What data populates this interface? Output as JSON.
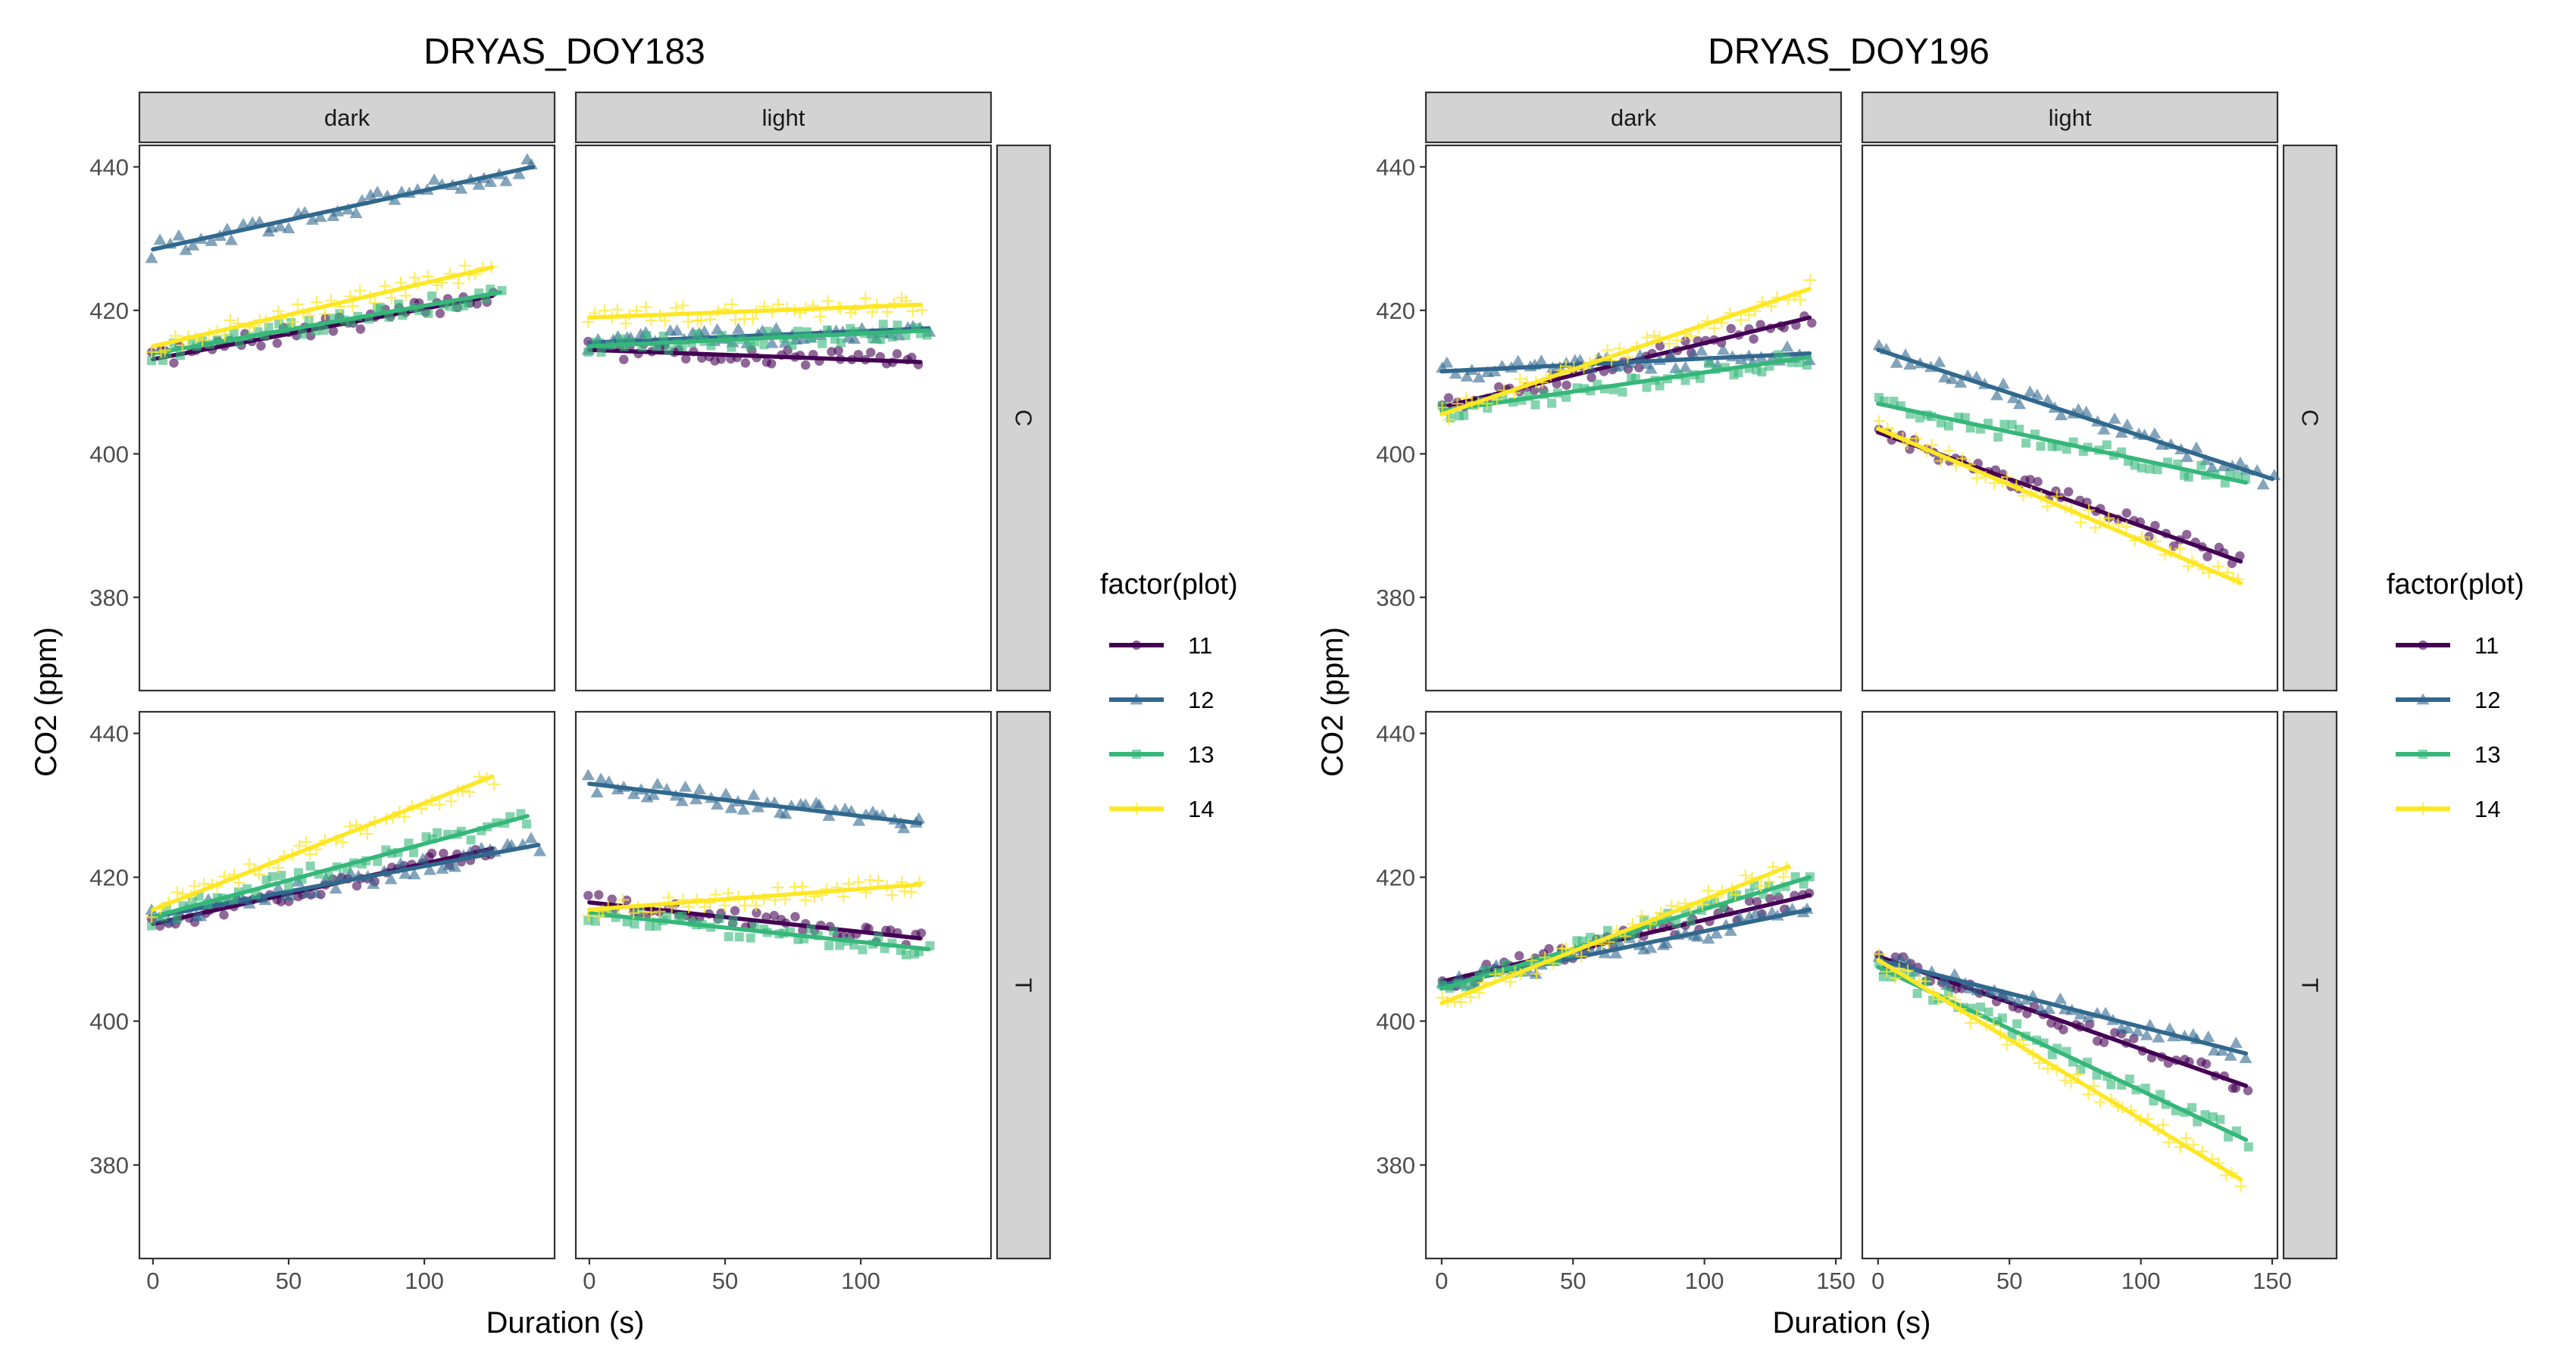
{
  "chart_data": [
    {
      "type": "scatter",
      "title": "DRYAS_DOY183",
      "xlabel": "Duration (s)",
      "ylabel": "CO2 (ppm)",
      "xlim": [
        -5,
        148
      ],
      "ylim": [
        367,
        443
      ],
      "x_ticks": [
        0,
        50,
        100
      ],
      "y_ticks": [
        380,
        400,
        420,
        440
      ],
      "columns": [
        "dark",
        "light"
      ],
      "rows": [
        "C",
        "T"
      ],
      "legend": {
        "title": "factor(plot)",
        "position": "right",
        "entries": [
          "11",
          "12",
          "13",
          "14"
        ]
      },
      "facets": [
        {
          "column": "dark",
          "row": "C",
          "series": [
            {
              "name": "11",
              "x": [
                0,
                125
              ],
              "y": [
                413.2,
                422.0
              ]
            },
            {
              "name": "12",
              "x": [
                0,
                140
              ],
              "y": [
                428.5,
                440.0
              ]
            },
            {
              "name": "13",
              "x": [
                0,
                128
              ],
              "y": [
                414.0,
                422.5
              ]
            },
            {
              "name": "14",
              "x": [
                0,
                125
              ],
              "y": [
                415.0,
                426.0
              ]
            }
          ]
        },
        {
          "column": "light",
          "row": "C",
          "series": [
            {
              "name": "11",
              "x": [
                0,
                122
              ],
              "y": [
                414.5,
                412.8
              ]
            },
            {
              "name": "12",
              "x": [
                0,
                125
              ],
              "y": [
                415.5,
                417.5
              ]
            },
            {
              "name": "13",
              "x": [
                0,
                125
              ],
              "y": [
                415.0,
                417.2
              ]
            },
            {
              "name": "14",
              "x": [
                0,
                122
              ],
              "y": [
                419.0,
                420.8
              ]
            }
          ]
        },
        {
          "column": "dark",
          "row": "T",
          "series": [
            {
              "name": "11",
              "x": [
                0,
                125
              ],
              "y": [
                413.5,
                424.0
              ]
            },
            {
              "name": "12",
              "x": [
                0,
                142
              ],
              "y": [
                414.5,
                424.5
              ]
            },
            {
              "name": "13",
              "x": [
                0,
                138
              ],
              "y": [
                414.5,
                428.5
              ]
            },
            {
              "name": "14",
              "x": [
                0,
                125
              ],
              "y": [
                415.5,
                434.0
              ]
            }
          ]
        },
        {
          "column": "light",
          "row": "T",
          "series": [
            {
              "name": "11",
              "x": [
                0,
                122
              ],
              "y": [
                416.5,
                411.5
              ]
            },
            {
              "name": "12",
              "x": [
                0,
                122
              ],
              "y": [
                433.0,
                427.5
              ]
            },
            {
              "name": "13",
              "x": [
                0,
                125
              ],
              "y": [
                415.0,
                410.0
              ]
            },
            {
              "name": "14",
              "x": [
                0,
                122
              ],
              "y": [
                415.5,
                419.0
              ]
            }
          ]
        }
      ]
    },
    {
      "type": "scatter",
      "title": "DRYAS_DOY196",
      "xlabel": "Duration (s)",
      "ylabel": "CO2 (ppm)",
      "xlim": [
        -6,
        152
      ],
      "ylim": [
        367,
        443
      ],
      "x_ticks": [
        0,
        50,
        100,
        150
      ],
      "y_ticks": [
        380,
        400,
        420,
        440
      ],
      "columns": [
        "dark",
        "light"
      ],
      "rows": [
        "C",
        "T"
      ],
      "legend": {
        "title": "factor(plot)",
        "position": "right",
        "entries": [
          "11",
          "12",
          "13",
          "14"
        ]
      },
      "facets": [
        {
          "column": "dark",
          "row": "C",
          "series": [
            {
              "name": "11",
              "x": [
                0,
                140
              ],
              "y": [
                406.5,
                419.0
              ]
            },
            {
              "name": "12",
              "x": [
                0,
                140
              ],
              "y": [
                411.5,
                414.0
              ]
            },
            {
              "name": "13",
              "x": [
                0,
                140
              ],
              "y": [
                406.0,
                413.5
              ]
            },
            {
              "name": "14",
              "x": [
                0,
                140
              ],
              "y": [
                405.5,
                423.0
              ]
            }
          ]
        },
        {
          "column": "light",
          "row": "C",
          "series": [
            {
              "name": "11",
              "x": [
                0,
                138
              ],
              "y": [
                403.0,
                385.0
              ]
            },
            {
              "name": "12",
              "x": [
                0,
                150
              ],
              "y": [
                414.5,
                396.5
              ]
            },
            {
              "name": "13",
              "x": [
                0,
                140
              ],
              "y": [
                407.0,
                396.0
              ]
            },
            {
              "name": "14",
              "x": [
                0,
                138
              ],
              "y": [
                403.5,
                382.0
              ]
            }
          ]
        },
        {
          "column": "dark",
          "row": "T",
          "series": [
            {
              "name": "11",
              "x": [
                0,
                140
              ],
              "y": [
                405.5,
                417.5
              ]
            },
            {
              "name": "12",
              "x": [
                0,
                140
              ],
              "y": [
                405.0,
                415.5
              ]
            },
            {
              "name": "13",
              "x": [
                0,
                140
              ],
              "y": [
                404.5,
                420.0
              ]
            },
            {
              "name": "14",
              "x": [
                0,
                132
              ],
              "y": [
                402.5,
                421.5
              ]
            }
          ]
        },
        {
          "column": "light",
          "row": "T",
          "series": [
            {
              "name": "11",
              "x": [
                0,
                140
              ],
              "y": [
                409.0,
                391.0
              ]
            },
            {
              "name": "12",
              "x": [
                0,
                140
              ],
              "y": [
                408.5,
                395.5
              ]
            },
            {
              "name": "13",
              "x": [
                0,
                140
              ],
              "y": [
                407.5,
                383.5
              ]
            },
            {
              "name": "14",
              "x": [
                0,
                138
              ],
              "y": [
                408.5,
                378.0
              ]
            }
          ]
        }
      ]
    }
  ],
  "series_styles": [
    {
      "name": "11",
      "color": "#440154",
      "shape": "circle"
    },
    {
      "name": "12",
      "color": "#31688e",
      "shape": "triangle"
    },
    {
      "name": "13",
      "color": "#35b779",
      "shape": "square"
    },
    {
      "name": "14",
      "color": "#fde725",
      "shape": "plus"
    }
  ]
}
